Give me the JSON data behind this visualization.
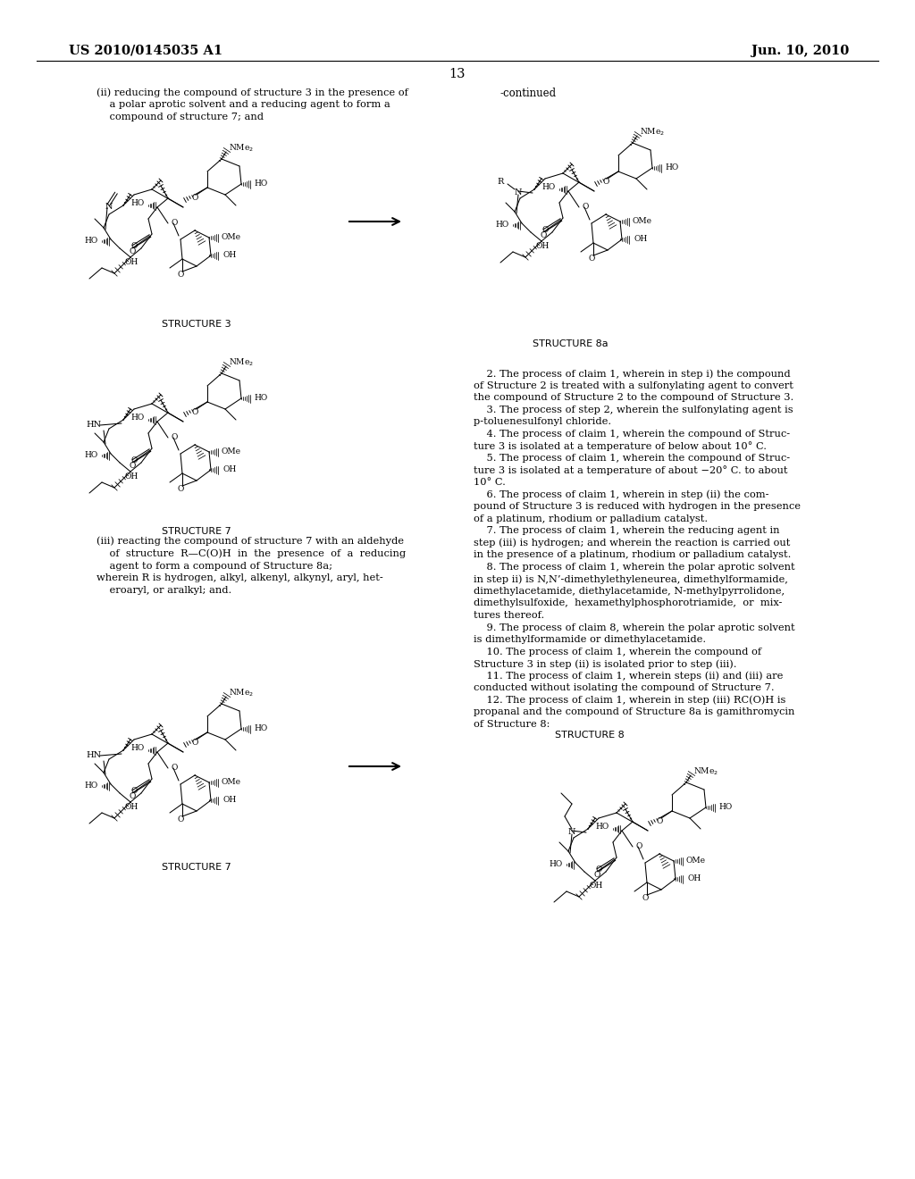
{
  "background": "#ffffff",
  "header_left": "US 2010/0145035 A1",
  "header_right": "Jun. 10, 2010",
  "page_num": "13",
  "left_intro": "(ii) reducing the compound of structure 3 in the presence of\n    a polar aprotic solvent and a reducing agent to form a\n    compound of structure 7; and",
  "left_mid_text": "(iii) reacting the compound of structure 7 with an aldehyde\n    of  structure  R—C(O)H  in  the  presence  of  a  reducing\n    agent to form a compound of Structure 8a;\nwherein R is hydrogen, alkyl, alkenyl, alkynyl, aryl, het-\n    eroaryl, or aralkyl; and.",
  "continued_label": "-continued",
  "struct_labels": {
    "s3": "STRUCTURE 3",
    "s7a": "STRUCTURE 7",
    "s7b": "STRUCTURE 7",
    "s8a": "STRUCTURE 8a",
    "s8": "STRUCTURE 8"
  },
  "claims": [
    "    2. The process of claim ±1, wherein in step i) the compound",
    "of Structure 2 is treated with a sulfonylating agent to convert",
    "the compound of Structure 2 to the compound of Structure 3.",
    "    3. The process of step 2, wherein the sulfonylating agent is",
    "p-toluenesulfonyl chloride.",
    "    4. The process of claim ±1, wherein the compound of Struc-",
    "ture 3 is isolated at a temperature of below about 10° C.",
    "    5. The process of claim ±1, wherein the compound of Struc-",
    "ture 3 is isolated at a temperature of about −20° C. to about",
    "10° C.",
    "    6. The process of claim ±1, wherein in step (ii) the com-",
    "pound of Structure 3 is reduced with hydrogen in the presence",
    "of a platinum, rhodium or palladium catalyst.",
    "    7. The process of claim ±1, wherein the reducing agent in",
    "step (iii) is hydrogen; and wherein the reaction is carried out",
    "in the presence of a platinum, rhodium or palladium catalyst.",
    "    8. The process of claim ±1, wherein the polar aprotic solvent",
    "in step ii) is N,N’-dimethylethyleneurea, dimethylformamide,",
    "dimethylacetamide, diethylacetamide, N-methylpyrrolidone,",
    "dimethylsulfoxide,  hexamethylphosphorotriamide,  or  mix-",
    "tures thereof.",
    "    9. The process of claim ±8, wherein the polar aprotic solvent",
    "is dimethylformamide or dimethylacetamide.",
    "    10. The process of claim ±1, wherein the compound of",
    "Structure 3 in step (ii) is isolated prior to step (iii).",
    "    11. The process of claim ±1, wherein steps (ii) and (iii) are",
    "conducted without isolating the compound of Structure 7.",
    "    12. The process of claim ±1, wherein in step (iii) RC(O)H is",
    "propanal and the compound of Structure 8a is gamithromycin",
    "of Structure 8:"
  ]
}
